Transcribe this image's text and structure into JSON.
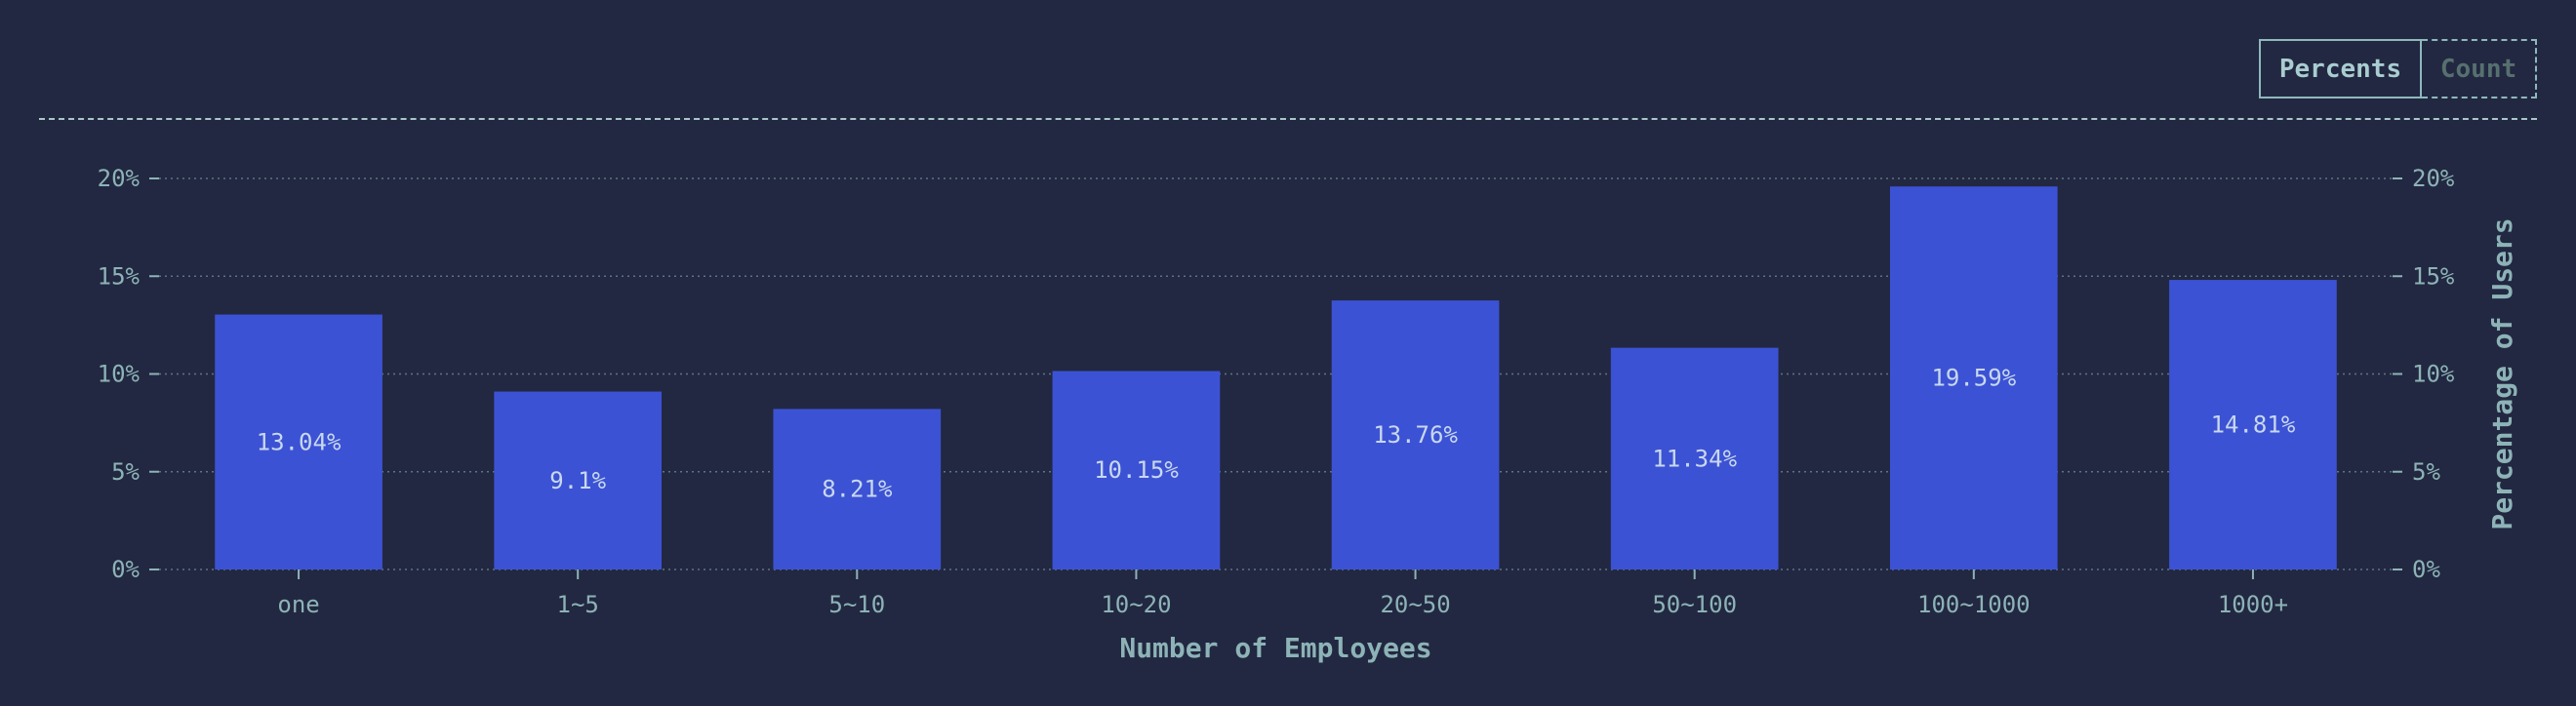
{
  "toggle": {
    "percents_label": "Percents",
    "count_label": "Count"
  },
  "colors": {
    "background": "#222841",
    "bar": "#3c52d4",
    "text": "#8db3b7",
    "grid": "#5e7482"
  },
  "chart_data": {
    "type": "bar",
    "categories": [
      "one",
      "1~5",
      "5~10",
      "10~20",
      "20~50",
      "50~100",
      "100~1000",
      "1000+"
    ],
    "values": [
      13.04,
      9.1,
      8.21,
      10.15,
      13.76,
      11.34,
      19.59,
      14.81
    ],
    "value_labels": [
      "13.04%",
      "9.1%",
      "8.21%",
      "10.15%",
      "13.76%",
      "11.34%",
      "19.59%",
      "14.81%"
    ],
    "xlabel": "Number of Employees",
    "ylabel": "Percentage of Users",
    "ylim": [
      0,
      20
    ],
    "yticks": [
      0,
      5,
      10,
      15,
      20
    ],
    "ytick_labels": [
      "0%",
      "5%",
      "10%",
      "15%",
      "20%"
    ],
    "grid": true,
    "secondary_y_axis": true
  }
}
